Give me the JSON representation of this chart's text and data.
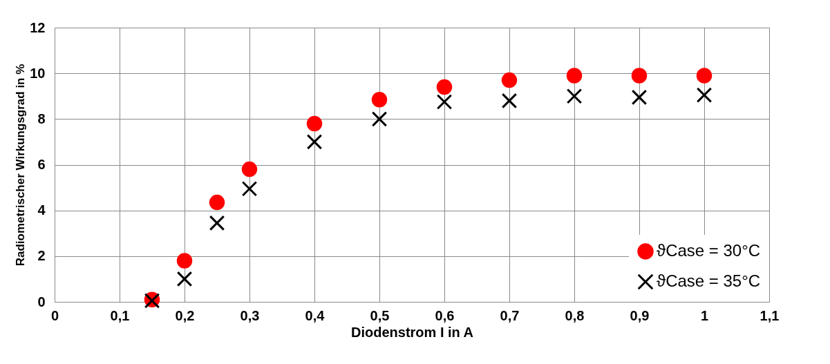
{
  "chart_data": {
    "type": "scatter",
    "xlabel": "Diodenstrom I in A",
    "ylabel": "Radiometrischer Wirkungsgrad in %",
    "x": [
      0.15,
      0.2,
      0.25,
      0.3,
      0.4,
      0.5,
      0.6,
      0.7,
      0.8,
      0.9,
      1.0
    ],
    "series": [
      {
        "name": "ϑCase = 30°C",
        "color": "#ff0000",
        "marker": "circle",
        "values": [
          0.1,
          1.8,
          4.35,
          5.8,
          7.8,
          8.85,
          9.4,
          9.7,
          9.9,
          9.9,
          9.9
        ]
      },
      {
        "name": "ϑCase = 35°C",
        "color": "#000000",
        "marker": "cross",
        "values": [
          0.05,
          1.0,
          3.45,
          4.95,
          7.0,
          8.0,
          8.75,
          8.8,
          9.0,
          8.95,
          9.05
        ]
      }
    ],
    "xlim": [
      0,
      1.1
    ],
    "xticks": [
      0,
      {
        "value": 0.1,
        "label": "0,1"
      },
      {
        "value": 0.2,
        "label": "0,2"
      },
      {
        "value": 0.3,
        "label": "0,3"
      },
      {
        "value": 0.4,
        "label": "0,4"
      },
      {
        "value": 0.5,
        "label": "0,5"
      },
      {
        "value": 0.6,
        "label": "0,6"
      },
      {
        "value": 0.7,
        "label": "0,7"
      },
      {
        "value": 0.8,
        "label": "0,8"
      },
      {
        "value": 0.9,
        "label": "0,9"
      },
      1,
      {
        "value": 1.1,
        "label": "1,1"
      }
    ],
    "ylim": [
      0,
      12
    ],
    "yticks": [
      0,
      2,
      4,
      6,
      8,
      10,
      12
    ],
    "grid": true,
    "legend": "bottom right"
  }
}
